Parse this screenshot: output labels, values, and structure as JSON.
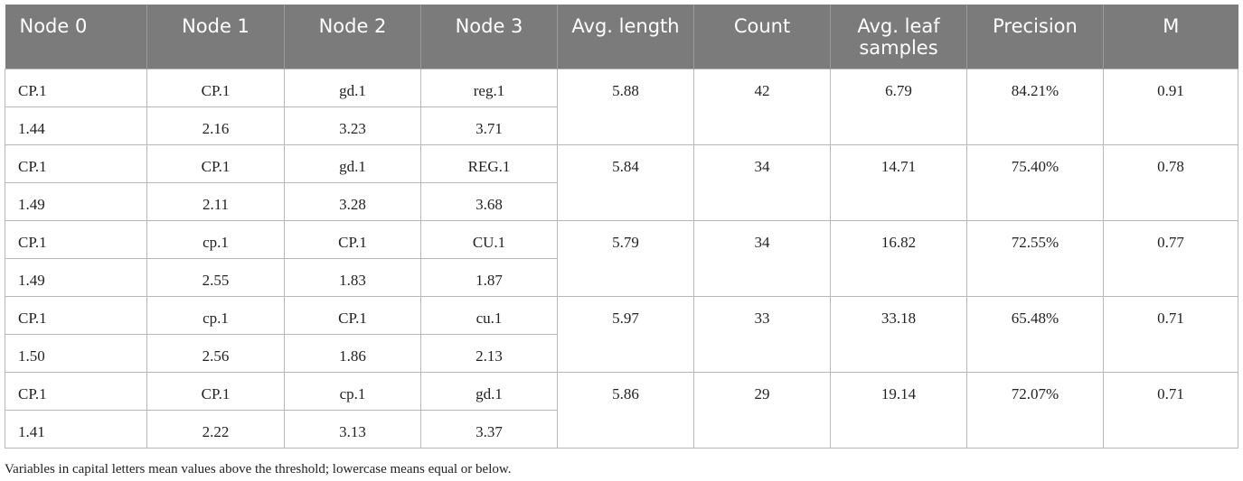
{
  "table": {
    "headers": [
      "Node 0",
      "Node 1",
      "Node 2",
      "Node 3",
      "Avg. length",
      "Count",
      "Avg. leaf samples",
      "Precision",
      "M"
    ],
    "rows": [
      {
        "nodes": [
          "CP.1",
          "CP.1",
          "gd.1",
          "reg.1"
        ],
        "thresholds": [
          "1.44",
          "2.16",
          "3.23",
          "3.71"
        ],
        "avg_length": "5.88",
        "count": "42",
        "avg_leaf_samples": "6.79",
        "precision": "84.21%",
        "m": "0.91"
      },
      {
        "nodes": [
          "CP.1",
          "CP.1",
          "gd.1",
          "REG.1"
        ],
        "thresholds": [
          "1.49",
          "2.11",
          "3.28",
          "3.68"
        ],
        "avg_length": "5.84",
        "count": "34",
        "avg_leaf_samples": "14.71",
        "precision": "75.40%",
        "m": "0.78"
      },
      {
        "nodes": [
          "CP.1",
          "cp.1",
          "CP.1",
          "CU.1"
        ],
        "thresholds": [
          "1.49",
          "2.55",
          "1.83",
          "1.87"
        ],
        "avg_length": "5.79",
        "count": "34",
        "avg_leaf_samples": "16.82",
        "precision": "72.55%",
        "m": "0.77"
      },
      {
        "nodes": [
          "CP.1",
          "cp.1",
          "CP.1",
          "cu.1"
        ],
        "thresholds": [
          "1.50",
          "2.56",
          "1.86",
          "2.13"
        ],
        "avg_length": "5.97",
        "count": "33",
        "avg_leaf_samples": "33.18",
        "precision": "65.48%",
        "m": "0.71"
      },
      {
        "nodes": [
          "CP.1",
          "CP.1",
          "cp.1",
          "gd.1"
        ],
        "thresholds": [
          "1.41",
          "2.22",
          "3.13",
          "3.37"
        ],
        "avg_length": "5.86",
        "count": "29",
        "avg_leaf_samples": "19.14",
        "precision": "72.07%",
        "m": "0.71"
      }
    ]
  },
  "footnote": "Variables in capital letters mean values above the threshold; lowercase means equal or below."
}
